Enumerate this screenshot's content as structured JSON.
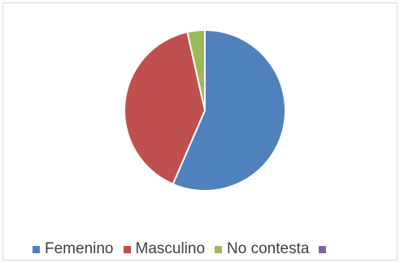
{
  "chart_data": {
    "type": "pie",
    "title": "",
    "categories": [
      "Femenino",
      "Masculino",
      "No contesta",
      ""
    ],
    "values": [
      56.5,
      40.0,
      3.5,
      0
    ],
    "colors": [
      "#4f81bd",
      "#c0504d",
      "#9bbb59",
      "#8064a2"
    ],
    "legend_position": "bottom"
  }
}
